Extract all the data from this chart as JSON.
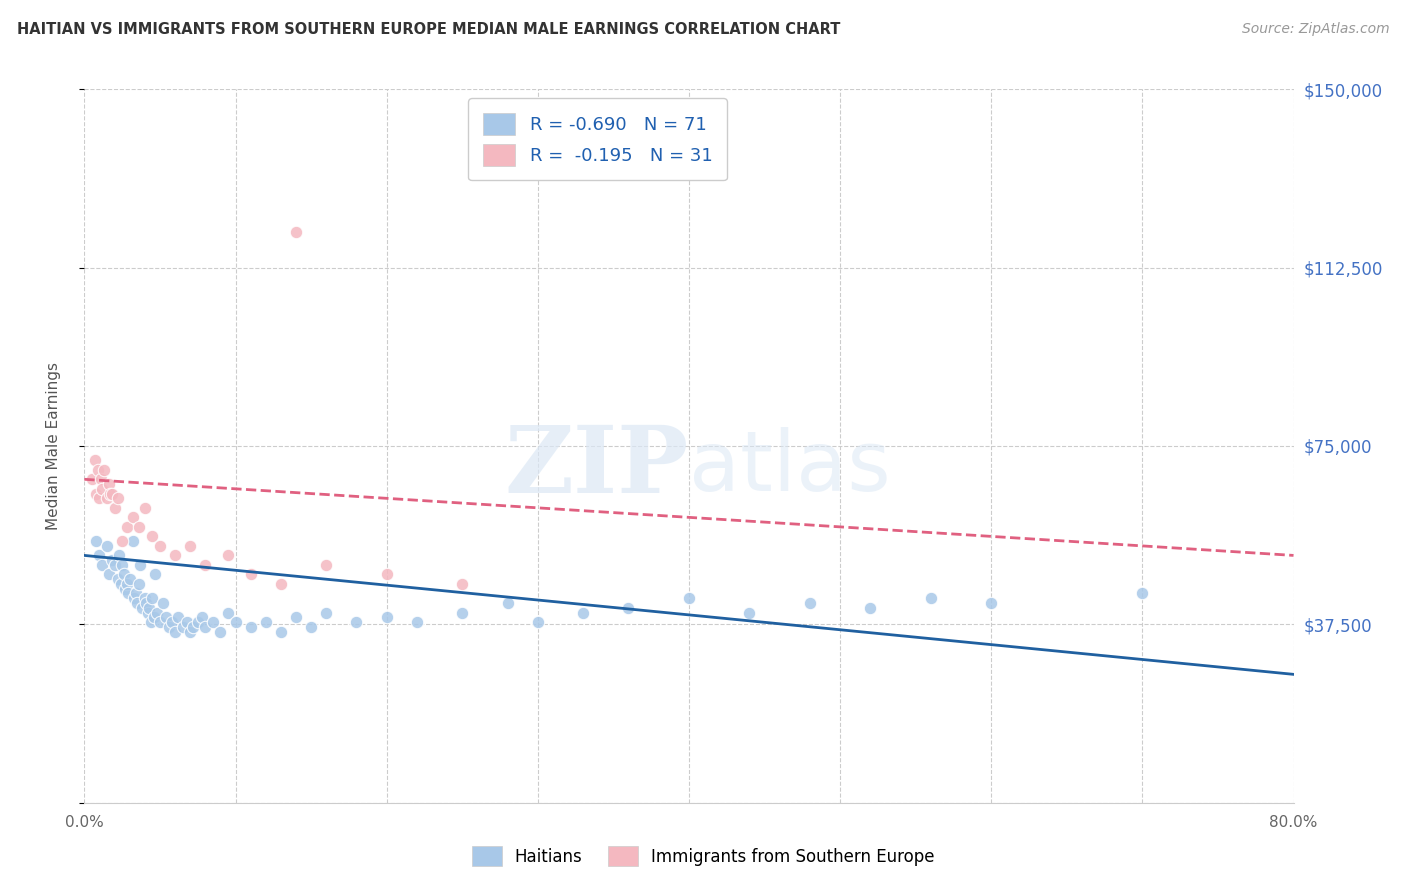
{
  "title": "HAITIAN VS IMMIGRANTS FROM SOUTHERN EUROPE MEDIAN MALE EARNINGS CORRELATION CHART",
  "source": "Source: ZipAtlas.com",
  "ylabel": "Median Male Earnings",
  "xlim": [
    0,
    0.8
  ],
  "ylim": [
    0,
    150000
  ],
  "yticks": [
    0,
    37500,
    75000,
    112500,
    150000
  ],
  "ytick_labels": [
    "",
    "$37,500",
    "$75,000",
    "$112,500",
    "$150,000"
  ],
  "xticks": [
    0.0,
    0.1,
    0.2,
    0.3,
    0.4,
    0.5,
    0.6,
    0.7,
    0.8
  ],
  "blue_color": "#a8c8e8",
  "pink_color": "#f4b8c0",
  "blue_line_color": "#2060a0",
  "pink_line_color": "#e06080",
  "r_blue": -0.69,
  "n_blue": 71,
  "r_pink": -0.195,
  "n_pink": 31,
  "watermark_zip": "ZIP",
  "watermark_atlas": "atlas",
  "background_color": "#ffffff",
  "grid_color": "#cccccc",
  "legend_text_color": "#2060b0",
  "right_tick_color": "#4472c4",
  "blue_scatter_x": [
    0.008,
    0.01,
    0.012,
    0.015,
    0.016,
    0.018,
    0.02,
    0.022,
    0.023,
    0.024,
    0.025,
    0.026,
    0.027,
    0.028,
    0.029,
    0.03,
    0.032,
    0.033,
    0.034,
    0.035,
    0.036,
    0.037,
    0.038,
    0.04,
    0.041,
    0.042,
    0.043,
    0.044,
    0.045,
    0.046,
    0.047,
    0.048,
    0.05,
    0.052,
    0.054,
    0.056,
    0.058,
    0.06,
    0.062,
    0.065,
    0.068,
    0.07,
    0.072,
    0.075,
    0.078,
    0.08,
    0.085,
    0.09,
    0.095,
    0.1,
    0.11,
    0.12,
    0.13,
    0.14,
    0.15,
    0.16,
    0.18,
    0.2,
    0.22,
    0.25,
    0.28,
    0.3,
    0.33,
    0.36,
    0.4,
    0.44,
    0.48,
    0.52,
    0.56,
    0.6,
    0.7
  ],
  "blue_scatter_y": [
    55000,
    52000,
    50000,
    54000,
    48000,
    51000,
    50000,
    47000,
    52000,
    46000,
    50000,
    48000,
    45000,
    46000,
    44000,
    47000,
    55000,
    43000,
    44000,
    42000,
    46000,
    50000,
    41000,
    43000,
    42000,
    40000,
    41000,
    38000,
    43000,
    39000,
    48000,
    40000,
    38000,
    42000,
    39000,
    37000,
    38000,
    36000,
    39000,
    37000,
    38000,
    36000,
    37000,
    38000,
    39000,
    37000,
    38000,
    36000,
    40000,
    38000,
    37000,
    38000,
    36000,
    39000,
    37000,
    40000,
    38000,
    39000,
    38000,
    40000,
    42000,
    38000,
    40000,
    41000,
    43000,
    40000,
    42000,
    41000,
    43000,
    42000,
    44000
  ],
  "pink_scatter_x": [
    0.005,
    0.007,
    0.008,
    0.009,
    0.01,
    0.011,
    0.012,
    0.013,
    0.015,
    0.016,
    0.017,
    0.018,
    0.02,
    0.022,
    0.025,
    0.028,
    0.032,
    0.036,
    0.04,
    0.045,
    0.05,
    0.06,
    0.07,
    0.08,
    0.095,
    0.11,
    0.13,
    0.16,
    0.2,
    0.25,
    0.14
  ],
  "pink_scatter_y": [
    68000,
    72000,
    65000,
    70000,
    64000,
    68000,
    66000,
    70000,
    64000,
    67000,
    65000,
    65000,
    62000,
    64000,
    55000,
    58000,
    60000,
    58000,
    62000,
    56000,
    54000,
    52000,
    54000,
    50000,
    52000,
    48000,
    46000,
    50000,
    48000,
    46000,
    120000
  ]
}
